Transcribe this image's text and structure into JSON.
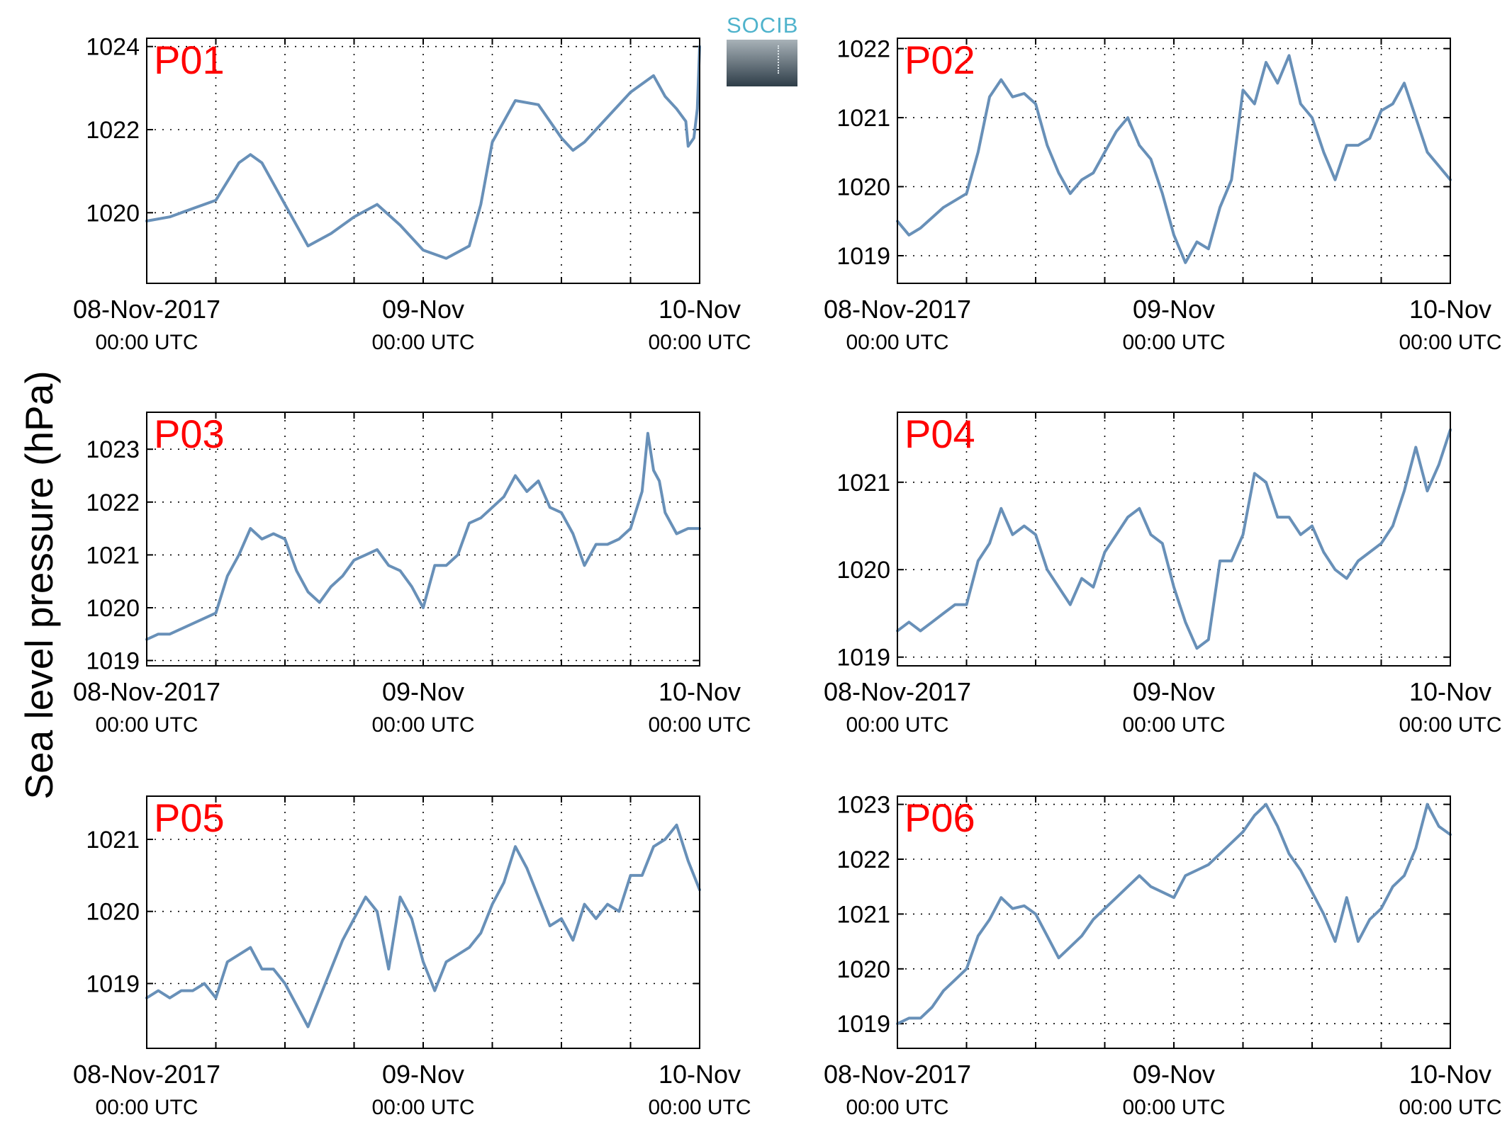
{
  "figure": {
    "ylabel": "Sea level pressure (hPa)",
    "logo_text": "SOCIB"
  },
  "styles": {
    "line_color": "#6890b8",
    "label_color": "#ff0000",
    "axis_color": "#000000"
  },
  "chart_data": [
    {
      "type": "line",
      "title": "P01",
      "x_ticks": [
        "08-Nov-2017\n00:00 UTC",
        "09-Nov\n00:00 UTC",
        "10-Nov\n00:00 UTC"
      ],
      "yticks": [
        1020,
        1022,
        1024
      ],
      "ylim": [
        1018.3,
        1024.2
      ],
      "xlim_hours": [
        0,
        48
      ],
      "grid": true,
      "series": [
        {
          "x_hours": [
            0,
            2,
            4,
            6,
            8,
            9,
            10,
            12,
            14,
            16,
            18,
            20,
            22,
            24,
            26,
            28,
            29,
            30,
            32,
            34,
            36,
            37,
            38,
            40,
            42,
            44,
            45,
            46,
            46.8,
            47,
            47.5,
            47.8,
            48
          ],
          "values": [
            1019.8,
            1019.9,
            1020.1,
            1020.3,
            1021.2,
            1021.4,
            1021.2,
            1020.2,
            1019.2,
            1019.5,
            1019.9,
            1020.2,
            1019.7,
            1019.1,
            1018.9,
            1019.2,
            1020.2,
            1021.7,
            1022.7,
            1022.6,
            1021.8,
            1021.5,
            1021.7,
            1022.3,
            1022.9,
            1023.3,
            1022.8,
            1022.5,
            1022.2,
            1021.6,
            1021.8,
            1022.5,
            1024.0
          ]
        }
      ]
    },
    {
      "type": "line",
      "title": "P02",
      "x_ticks": [
        "08-Nov-2017\n00:00 UTC",
        "09-Nov\n00:00 UTC",
        "10-Nov\n00:00 UTC"
      ],
      "yticks": [
        1019,
        1020,
        1021,
        1022
      ],
      "ylim": [
        1018.6,
        1022.15
      ],
      "xlim_hours": [
        0,
        48
      ],
      "grid": true,
      "series": [
        {
          "x_hours": [
            0,
            1,
            2,
            4,
            6,
            7,
            8,
            9,
            10,
            11,
            12,
            13,
            14,
            15,
            16,
            17,
            18,
            19,
            20,
            21,
            22,
            23,
            24,
            25,
            26,
            27,
            28,
            29,
            30,
            31,
            32,
            33,
            34,
            35,
            36,
            37,
            38,
            39,
            40,
            41,
            42,
            43,
            44,
            45,
            46,
            47,
            48
          ],
          "values": [
            1019.5,
            1019.3,
            1019.4,
            1019.7,
            1019.9,
            1020.5,
            1021.3,
            1021.55,
            1021.3,
            1021.35,
            1021.2,
            1020.6,
            1020.2,
            1019.9,
            1020.1,
            1020.2,
            1020.5,
            1020.8,
            1021.0,
            1020.6,
            1020.4,
            1019.9,
            1019.3,
            1018.9,
            1019.2,
            1019.1,
            1019.7,
            1020.1,
            1021.4,
            1021.2,
            1021.8,
            1021.5,
            1021.9,
            1021.2,
            1021.0,
            1020.5,
            1020.1,
            1020.6,
            1020.6,
            1020.7,
            1021.1,
            1021.2,
            1021.5,
            1021.0,
            1020.5,
            1020.3,
            1020.1
          ]
        }
      ]
    },
    {
      "type": "line",
      "title": "P03",
      "x_ticks": [
        "08-Nov-2017\n00:00 UTC",
        "09-Nov\n00:00 UTC",
        "10-Nov\n00:00 UTC"
      ],
      "yticks": [
        1019,
        1020,
        1021,
        1022,
        1023
      ],
      "ylim": [
        1018.9,
        1023.7
      ],
      "xlim_hours": [
        0,
        48
      ],
      "grid": true,
      "series": [
        {
          "x_hours": [
            0,
            1,
            2,
            4,
            6,
            7,
            8,
            9,
            10,
            11,
            12,
            13,
            14,
            15,
            16,
            17,
            18,
            19,
            20,
            21,
            22,
            23,
            24,
            25,
            26,
            27,
            28,
            29,
            30,
            31,
            32,
            33,
            34,
            35,
            36,
            37,
            38,
            39,
            40,
            41,
            42,
            43,
            43.5,
            44,
            44.5,
            45,
            46,
            47,
            48
          ],
          "values": [
            1019.4,
            1019.5,
            1019.5,
            1019.7,
            1019.9,
            1020.6,
            1021.0,
            1021.5,
            1021.3,
            1021.4,
            1021.3,
            1020.7,
            1020.3,
            1020.1,
            1020.4,
            1020.6,
            1020.9,
            1021.0,
            1021.1,
            1020.8,
            1020.7,
            1020.4,
            1020.0,
            1020.8,
            1020.8,
            1021.0,
            1021.6,
            1021.7,
            1021.9,
            1022.1,
            1022.5,
            1022.2,
            1022.4,
            1021.9,
            1021.8,
            1021.4,
            1020.8,
            1021.2,
            1021.2,
            1021.3,
            1021.5,
            1022.2,
            1023.3,
            1022.6,
            1022.4,
            1021.8,
            1021.4,
            1021.5,
            1021.5
          ]
        }
      ]
    },
    {
      "type": "line",
      "title": "P04",
      "x_ticks": [
        "08-Nov-2017\n00:00 UTC",
        "09-Nov\n00:00 UTC",
        "10-Nov\n00:00 UTC"
      ],
      "yticks": [
        1019,
        1020,
        1021
      ],
      "ylim": [
        1018.9,
        1021.8
      ],
      "xlim_hours": [
        0,
        48
      ],
      "grid": true,
      "series": [
        {
          "x_hours": [
            0,
            1,
            2,
            3,
            4,
            5,
            6,
            7,
            8,
            9,
            10,
            11,
            12,
            13,
            14,
            15,
            16,
            17,
            18,
            19,
            20,
            21,
            22,
            23,
            24,
            25,
            26,
            27,
            28,
            29,
            30,
            31,
            32,
            33,
            34,
            35,
            36,
            37,
            38,
            39,
            40,
            41,
            42,
            43,
            44,
            45,
            46,
            47,
            48
          ],
          "values": [
            1019.3,
            1019.4,
            1019.3,
            1019.4,
            1019.5,
            1019.6,
            1019.6,
            1020.1,
            1020.3,
            1020.7,
            1020.4,
            1020.5,
            1020.4,
            1020.0,
            1019.8,
            1019.6,
            1019.9,
            1019.8,
            1020.2,
            1020.4,
            1020.6,
            1020.7,
            1020.4,
            1020.3,
            1019.8,
            1019.4,
            1019.1,
            1019.2,
            1020.1,
            1020.1,
            1020.4,
            1021.1,
            1021.0,
            1020.6,
            1020.6,
            1020.4,
            1020.5,
            1020.2,
            1020.0,
            1019.9,
            1020.1,
            1020.2,
            1020.3,
            1020.5,
            1020.9,
            1021.4,
            1020.9,
            1021.2,
            1021.6
          ]
        }
      ]
    },
    {
      "type": "line",
      "title": "P05",
      "x_ticks": [
        "08-Nov-2017\n00:00 UTC",
        "09-Nov\n00:00 UTC",
        "10-Nov\n00:00 UTC"
      ],
      "yticks": [
        1019,
        1020,
        1021
      ],
      "ylim": [
        1018.1,
        1021.6
      ],
      "xlim_hours": [
        0,
        48
      ],
      "grid": true,
      "series": [
        {
          "x_hours": [
            0,
            1,
            2,
            3,
            4,
            5,
            6,
            7,
            8,
            9,
            10,
            11,
            12,
            13,
            14,
            15,
            16,
            17,
            18,
            19,
            20,
            21,
            22,
            23,
            24,
            25,
            26,
            27,
            28,
            29,
            30,
            31,
            32,
            33,
            34,
            35,
            36,
            37,
            38,
            39,
            40,
            41,
            42,
            43,
            44,
            45,
            46,
            47,
            48
          ],
          "values": [
            1018.8,
            1018.9,
            1018.8,
            1018.9,
            1018.9,
            1019.0,
            1018.8,
            1019.3,
            1019.4,
            1019.5,
            1019.2,
            1019.2,
            1019.0,
            1018.7,
            1018.4,
            1018.8,
            1019.2,
            1019.6,
            1019.9,
            1020.2,
            1020.0,
            1019.2,
            1020.2,
            1019.9,
            1019.3,
            1018.9,
            1019.3,
            1019.4,
            1019.5,
            1019.7,
            1020.1,
            1020.4,
            1020.9,
            1020.6,
            1020.2,
            1019.8,
            1019.9,
            1019.6,
            1020.1,
            1019.9,
            1020.1,
            1020.0,
            1020.5,
            1020.5,
            1020.9,
            1021.0,
            1021.2,
            1020.7,
            1020.3
          ]
        }
      ]
    },
    {
      "type": "line",
      "title": "P06",
      "x_ticks": [
        "08-Nov-2017\n00:00 UTC",
        "09-Nov\n00:00 UTC",
        "10-Nov\n00:00 UTC"
      ],
      "yticks": [
        1019,
        1020,
        1021,
        1022,
        1023
      ],
      "ylim": [
        1018.55,
        1023.15
      ],
      "xlim_hours": [
        0,
        48
      ],
      "grid": true,
      "series": [
        {
          "x_hours": [
            0,
            1,
            2,
            3,
            4,
            5,
            6,
            7,
            8,
            9,
            10,
            11,
            12,
            13,
            14,
            15,
            16,
            17,
            18,
            19,
            20,
            21,
            22,
            23,
            24,
            25,
            26,
            27,
            28,
            29,
            30,
            31,
            32,
            33,
            34,
            35,
            36,
            37,
            38,
            39,
            40,
            41,
            42,
            43,
            44,
            45,
            46,
            47,
            48
          ],
          "values": [
            1019.0,
            1019.1,
            1019.1,
            1019.3,
            1019.6,
            1019.8,
            1020.0,
            1020.6,
            1020.9,
            1021.3,
            1021.1,
            1021.15,
            1021.0,
            1020.6,
            1020.2,
            1020.4,
            1020.6,
            1020.9,
            1021.1,
            1021.3,
            1021.5,
            1021.7,
            1021.5,
            1021.4,
            1021.3,
            1021.7,
            1021.8,
            1021.9,
            1022.1,
            1022.3,
            1022.5,
            1022.8,
            1023.0,
            1022.6,
            1022.1,
            1021.8,
            1021.4,
            1021.0,
            1020.5,
            1021.3,
            1020.5,
            1020.9,
            1021.1,
            1021.5,
            1021.7,
            1022.2,
            1023.0,
            1022.6,
            1022.45
          ]
        }
      ]
    }
  ]
}
